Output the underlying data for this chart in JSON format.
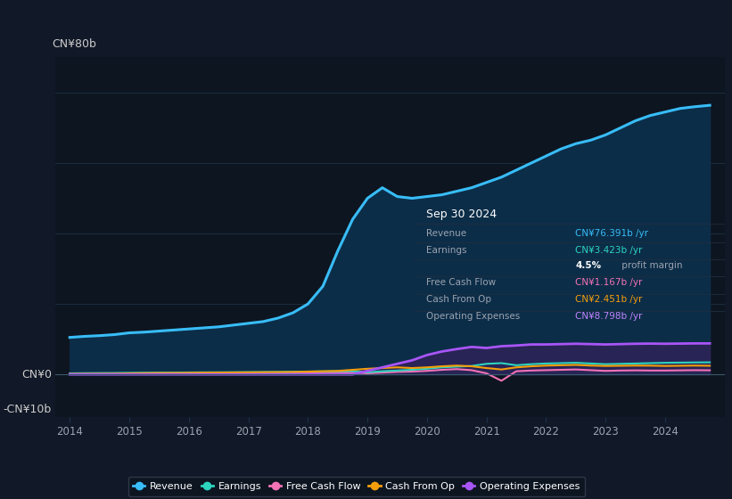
{
  "bg_color": "#111827",
  "plot_bg_color": "#0d1520",
  "revenue_color": "#38bdf8",
  "earnings_color": "#2dd4bf",
  "fcf_color": "#f472b6",
  "cashfromop_color": "#f59e0b",
  "opex_color": "#a855f7",
  "revenue_fill_color": "#0c2d48",
  "opex_fill_color": "#3b1f5e",
  "ylabel_color": "#cccccc",
  "grid_color": "#1e3348",
  "axis_label_color": "#9ca3af",
  "legend_bg": "#0d1520",
  "legend_border": "#374151",
  "years": [
    2014.0,
    2014.25,
    2014.5,
    2014.75,
    2015.0,
    2015.25,
    2015.5,
    2015.75,
    2016.0,
    2016.25,
    2016.5,
    2016.75,
    2017.0,
    2017.25,
    2017.5,
    2017.75,
    2018.0,
    2018.25,
    2018.5,
    2018.75,
    2019.0,
    2019.25,
    2019.5,
    2019.75,
    2020.0,
    2020.25,
    2020.5,
    2020.75,
    2021.0,
    2021.25,
    2021.5,
    2021.75,
    2022.0,
    2022.25,
    2022.5,
    2022.75,
    2023.0,
    2023.25,
    2023.5,
    2023.75,
    2024.0,
    2024.25,
    2024.5,
    2024.75
  ],
  "revenue": [
    10.5,
    10.8,
    11.0,
    11.3,
    11.8,
    12.0,
    12.3,
    12.6,
    12.9,
    13.2,
    13.5,
    14.0,
    14.5,
    15.0,
    16.0,
    17.5,
    20.0,
    25.0,
    35.0,
    44.0,
    50.0,
    53.0,
    50.5,
    50.0,
    50.5,
    51.0,
    52.0,
    53.0,
    54.5,
    56.0,
    58.0,
    60.0,
    62.0,
    64.0,
    65.5,
    66.5,
    68.0,
    70.0,
    72.0,
    73.5,
    74.5,
    75.5,
    76.0,
    76.4
  ],
  "earnings": [
    0.3,
    0.35,
    0.38,
    0.4,
    0.45,
    0.48,
    0.5,
    0.52,
    0.55,
    0.58,
    0.6,
    0.63,
    0.65,
    0.68,
    0.7,
    0.75,
    0.8,
    0.85,
    0.9,
    0.95,
    0.6,
    0.9,
    1.1,
    1.3,
    1.6,
    2.0,
    2.2,
    2.4,
    3.0,
    3.2,
    2.6,
    2.9,
    3.1,
    3.2,
    3.3,
    3.1,
    2.9,
    3.0,
    3.1,
    3.2,
    3.3,
    3.35,
    3.4,
    3.423
  ],
  "fcf": [
    0.05,
    0.08,
    0.06,
    0.08,
    0.12,
    0.15,
    0.18,
    0.2,
    0.22,
    0.25,
    0.28,
    0.3,
    0.3,
    0.35,
    0.38,
    0.4,
    0.45,
    0.5,
    0.55,
    0.5,
    0.3,
    0.5,
    0.7,
    0.8,
    1.0,
    1.3,
    1.5,
    1.2,
    0.3,
    -1.8,
    0.9,
    1.1,
    1.2,
    1.3,
    1.4,
    1.2,
    1.0,
    1.1,
    1.15,
    1.1,
    1.1,
    1.15,
    1.2,
    1.167
  ],
  "cashfromop": [
    0.15,
    0.18,
    0.2,
    0.22,
    0.3,
    0.35,
    0.4,
    0.42,
    0.45,
    0.5,
    0.52,
    0.55,
    0.58,
    0.62,
    0.65,
    0.7,
    0.8,
    0.9,
    1.0,
    1.3,
    1.6,
    1.8,
    2.0,
    1.8,
    2.0,
    2.3,
    2.5,
    2.3,
    1.8,
    1.4,
    2.0,
    2.3,
    2.5,
    2.6,
    2.7,
    2.5,
    2.4,
    2.45,
    2.5,
    2.48,
    2.4,
    2.45,
    2.5,
    2.451
  ],
  "opex": [
    0.0,
    0.0,
    0.0,
    0.0,
    0.0,
    0.0,
    0.0,
    0.0,
    0.0,
    0.0,
    0.0,
    0.0,
    0.0,
    0.0,
    0.0,
    0.0,
    0.0,
    0.0,
    0.0,
    0.0,
    1.0,
    2.0,
    3.0,
    4.0,
    5.5,
    6.5,
    7.2,
    7.8,
    7.5,
    8.0,
    8.2,
    8.5,
    8.5,
    8.6,
    8.7,
    8.6,
    8.5,
    8.6,
    8.7,
    8.75,
    8.7,
    8.75,
    8.8,
    8.798
  ],
  "ylim": [
    -12,
    90
  ],
  "xlim": [
    2013.75,
    2025.0
  ],
  "xticks": [
    2014,
    2015,
    2016,
    2017,
    2018,
    2019,
    2020,
    2021,
    2022,
    2023,
    2024
  ],
  "zero_line_y": 0,
  "gridlines_y": [
    0,
    20,
    40,
    60,
    80
  ]
}
